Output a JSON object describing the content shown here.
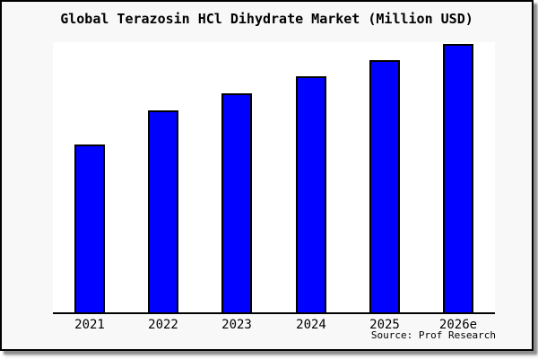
{
  "window": {
    "background": "#f8f8f8",
    "border_color": "#000000",
    "shadow_color": "#8f8f8f"
  },
  "chart_data": {
    "type": "bar",
    "title": "Global Terazosin HCl Dihydrate Market (Million USD)",
    "categories": [
      "2021",
      "2022",
      "2023",
      "2024",
      "2025",
      "2026e"
    ],
    "values": [
      62.5,
      75.3,
      81.6,
      88.0,
      94.0,
      100.0
    ],
    "values_note": "no numeric value axis or data labels are shown in the chart; values are relative bar heights with 2026e = 100",
    "ylim": [
      0,
      101.3
    ],
    "xlabel": "",
    "ylabel": "",
    "grid": false,
    "legend": false,
    "bar_color": "#0000ff",
    "bar_border_color": "#000000",
    "plot_background": "#ffffff",
    "axis_line_color": "#000000"
  },
  "footer": {
    "source_label": "Source: Prof Research"
  }
}
